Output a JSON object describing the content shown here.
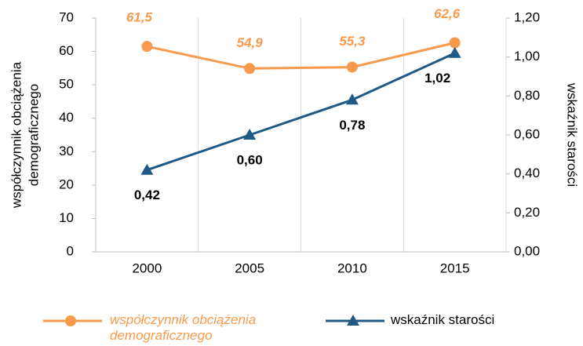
{
  "chart_data": {
    "type": "line",
    "categories": [
      "2000",
      "2005",
      "2010",
      "2015"
    ],
    "ylabel": [
      "współczynnik obciążenia",
      "demograficznego"
    ],
    "y2label": "wskaźnik starości",
    "ylim": [
      0,
      70
    ],
    "yticks": [
      0,
      10,
      20,
      30,
      40,
      50,
      60,
      70
    ],
    "y2lim": [
      0,
      1.2
    ],
    "y2ticks": [
      {
        "value": 0,
        "label": "0,00"
      },
      {
        "value": 0.2,
        "label": "0,20"
      },
      {
        "value": 0.4,
        "label": "0,40"
      },
      {
        "value": 0.6,
        "label": "0,60"
      },
      {
        "value": 0.8,
        "label": "0,80"
      },
      {
        "value": 1.0,
        "label": "1,00"
      },
      {
        "value": 1.2,
        "label": "1,20"
      }
    ],
    "series": [
      {
        "name": "współczynnik obciążenia demograficznego",
        "color": "#f79a4b",
        "marker": "circle",
        "values": [
          61.5,
          54.9,
          55.3,
          62.6
        ],
        "value_labels": [
          "61,5",
          "54,9",
          "55,3",
          "62,6"
        ]
      },
      {
        "name": "wskaźnik starości",
        "color": "#1f5a87",
        "marker": "triangle",
        "axis": "y2",
        "values": [
          0.42,
          0.6,
          0.78,
          1.02
        ],
        "value_labels": [
          "0,42",
          "0,60",
          "0,78",
          "1,02"
        ]
      }
    ],
    "legend": "bottom"
  }
}
